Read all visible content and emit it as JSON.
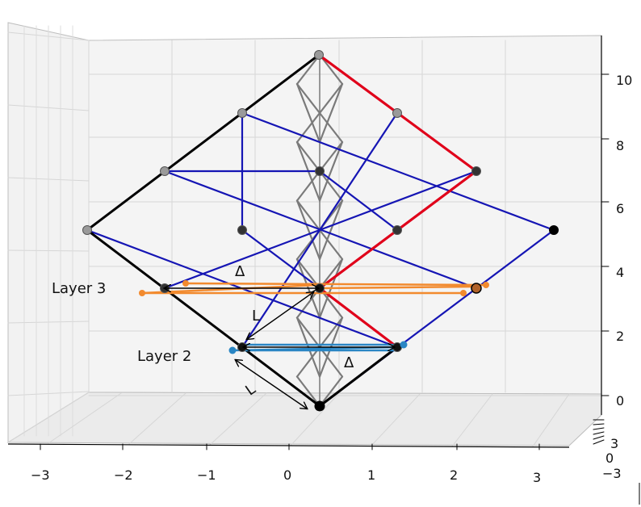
{
  "chart_data": {
    "type": "diagram-3d-lattice",
    "z_ticks": [
      "10",
      "8",
      "6",
      "4",
      "2",
      "0"
    ],
    "x_ticks": [
      "−3",
      "−2",
      "−1",
      "0",
      "1",
      "2",
      "3"
    ],
    "y_ticks": [
      "3",
      "0",
      "−3"
    ],
    "annotations": {
      "layer3": "Layer 3",
      "layer2": "Layer 2",
      "delta_upper": "Δ",
      "delta_lower": "Δ",
      "length_upper": "L",
      "length_lower": "L"
    },
    "colors": {
      "lattice": "#1515b4",
      "outline": "#000000",
      "highlight": "#e0001a",
      "column": "#7a7a7a",
      "layer3": "#f28a2e",
      "layer2": "#2a86c4",
      "node": "#000000",
      "node_grey": "#9a9a9a"
    },
    "grid": true
  }
}
